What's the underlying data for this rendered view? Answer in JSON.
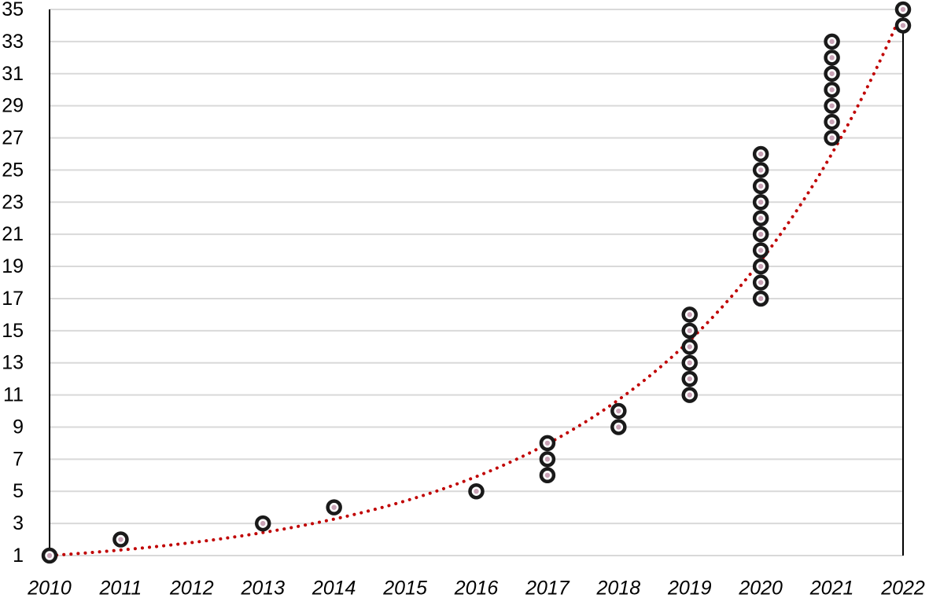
{
  "chart_data": {
    "type": "scatter",
    "title": "",
    "xlabel": "",
    "ylabel": "",
    "xlim": [
      2010,
      2022
    ],
    "ylim": [
      1,
      35
    ],
    "x_ticks": [
      "2010",
      "2011",
      "2012",
      "2013",
      "2014",
      "2015",
      "2016",
      "2017",
      "2018",
      "2019",
      "2020",
      "2021",
      "2022"
    ],
    "y_ticks": [
      "1",
      "3",
      "5",
      "7",
      "9",
      "11",
      "13",
      "15",
      "17",
      "19",
      "21",
      "23",
      "25",
      "27",
      "29",
      "31",
      "33",
      "35"
    ],
    "grid": "horizontal",
    "series": [
      {
        "points": [
          {
            "x": 2010,
            "y": 1
          },
          {
            "x": 2011,
            "y": 2
          },
          {
            "x": 2013,
            "y": 3
          },
          {
            "x": 2014,
            "y": 4
          },
          {
            "x": 2016,
            "y": 5
          },
          {
            "x": 2017,
            "y": 6
          },
          {
            "x": 2017,
            "y": 7
          },
          {
            "x": 2017,
            "y": 8
          },
          {
            "x": 2018,
            "y": 9
          },
          {
            "x": 2018,
            "y": 10
          },
          {
            "x": 2019,
            "y": 11
          },
          {
            "x": 2019,
            "y": 12
          },
          {
            "x": 2019,
            "y": 13
          },
          {
            "x": 2019,
            "y": 14
          },
          {
            "x": 2019,
            "y": 15
          },
          {
            "x": 2019,
            "y": 16
          },
          {
            "x": 2020,
            "y": 17
          },
          {
            "x": 2020,
            "y": 18
          },
          {
            "x": 2020,
            "y": 19
          },
          {
            "x": 2020,
            "y": 20
          },
          {
            "x": 2020,
            "y": 21
          },
          {
            "x": 2020,
            "y": 22
          },
          {
            "x": 2020,
            "y": 23
          },
          {
            "x": 2020,
            "y": 24
          },
          {
            "x": 2020,
            "y": 25
          },
          {
            "x": 2020,
            "y": 26
          },
          {
            "x": 2021,
            "y": 27
          },
          {
            "x": 2021,
            "y": 28
          },
          {
            "x": 2021,
            "y": 29
          },
          {
            "x": 2021,
            "y": 30
          },
          {
            "x": 2021,
            "y": 31
          },
          {
            "x": 2021,
            "y": 32
          },
          {
            "x": 2021,
            "y": 33
          },
          {
            "x": 2022,
            "y": 34
          },
          {
            "x": 2022,
            "y": 35
          }
        ],
        "marker_color": "#1a1a1a",
        "marker_center_color": "#c9a3b6"
      }
    ],
    "trendline": {
      "type": "exponential",
      "style": "dotted",
      "color": "#c00000",
      "x": [
        2010,
        2011,
        2012,
        2013,
        2014,
        2015,
        2016,
        2017,
        2018,
        2019,
        2020,
        2021,
        2022
      ],
      "y": [
        1.0,
        1.35,
        1.9,
        2.6,
        3.5,
        4.7,
        6.2,
        8.3,
        11.0,
        15.0,
        20.3,
        27.0,
        35.0
      ]
    }
  }
}
